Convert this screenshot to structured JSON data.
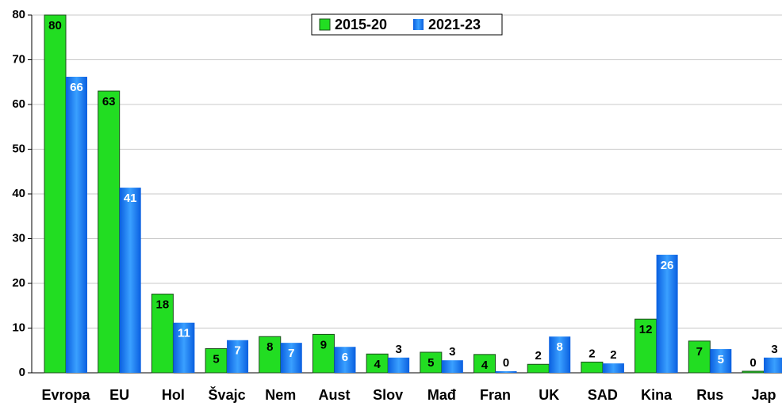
{
  "chart_data": {
    "type": "bar",
    "categories": [
      "Evropa",
      "EU",
      "Hol",
      "Švajc",
      "Nem",
      "Aust",
      "Slov",
      "Mađ",
      "Fran",
      "UK",
      "SAD",
      "Kina",
      "Rus",
      "Jap"
    ],
    "series": [
      {
        "name": "2015-20",
        "color": "#22dd22",
        "values": [
          80,
          63,
          17.6,
          5.4,
          8.1,
          8.6,
          4.2,
          4.6,
          4.1,
          1.9,
          2.4,
          12,
          7.1,
          0.35
        ],
        "value_labels": [
          "80",
          "63",
          "18",
          "5",
          "8",
          "9",
          "4",
          "5",
          "4",
          "2",
          "2",
          "12",
          "7",
          "0"
        ]
      },
      {
        "name": "2021-23",
        "color": "#1a7fff",
        "values": [
          66.2,
          41.4,
          11.2,
          7.3,
          6.7,
          5.8,
          3.4,
          2.8,
          0.35,
          8.1,
          2.1,
          26.4,
          5.3,
          3.4
        ],
        "value_labels": [
          "66",
          "41",
          "11",
          "7",
          "7",
          "6",
          "3",
          "3",
          "0",
          "8",
          "2",
          "26",
          "5",
          "3"
        ]
      }
    ],
    "ylim": [
      0,
      80
    ],
    "yticks": [
      0,
      10,
      20,
      30,
      40,
      50,
      60,
      70,
      80
    ],
    "grid": true,
    "legend_position": "top"
  }
}
